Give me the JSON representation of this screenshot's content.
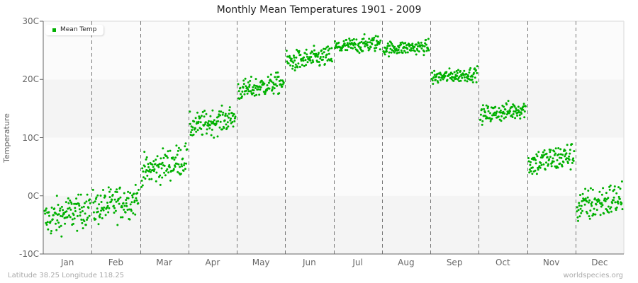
{
  "title": "Monthly Mean Temperatures 1901 - 2009",
  "footer": {
    "location": "Latitude 38.25 Longitude 118.25",
    "source": "worldspecies.org"
  },
  "legend": {
    "label": "Mean Temp",
    "color": "#00b000"
  },
  "colors": {
    "point": "#00b000",
    "band_light": "#fbfbfb",
    "band_dark": "#f4f4f4",
    "divider": "#777777",
    "axis": "#666666",
    "border": "#e4e4e4"
  },
  "chart_data": {
    "type": "scatter",
    "title": "Monthly Mean Temperatures 1901 - 2009",
    "xlabel": "",
    "ylabel": "Temperature",
    "ylim": [
      -10,
      30
    ],
    "yticks": [
      "-10C",
      "0C",
      "10C",
      "20C",
      "30C"
    ],
    "ytick_values": [
      -10,
      0,
      10,
      20,
      30
    ],
    "categories": [
      "Jan",
      "Feb",
      "Mar",
      "Apr",
      "May",
      "Jun",
      "Jul",
      "Aug",
      "Sep",
      "Oct",
      "Nov",
      "Dec"
    ],
    "years": [
      1901,
      2009
    ],
    "grid": "alternating horizontal bands, dashed vertical month dividers",
    "legend_position": "top-left",
    "series": [
      {
        "name": "Mean Temp",
        "per_month": [
          {
            "month": "Jan",
            "start_mean": -4.2,
            "end_mean": -2.0,
            "spread": 1.6,
            "min": -7.0,
            "max": 0.2
          },
          {
            "month": "Feb",
            "start_mean": -2.2,
            "end_mean": -0.5,
            "spread": 1.5,
            "min": -5.3,
            "max": 2.7
          },
          {
            "month": "Mar",
            "start_mean": 4.0,
            "end_mean": 6.5,
            "spread": 1.4,
            "min": 1.5,
            "max": 9.0
          },
          {
            "month": "Apr",
            "start_mean": 11.8,
            "end_mean": 13.5,
            "spread": 1.1,
            "min": 10.0,
            "max": 15.5
          },
          {
            "month": "May",
            "start_mean": 18.0,
            "end_mean": 19.5,
            "spread": 0.9,
            "min": 16.5,
            "max": 21.5
          },
          {
            "month": "Jun",
            "start_mean": 23.0,
            "end_mean": 24.0,
            "spread": 0.9,
            "min": 21.5,
            "max": 25.8
          },
          {
            "month": "Jul",
            "start_mean": 25.5,
            "end_mean": 26.3,
            "spread": 0.7,
            "min": 24.0,
            "max": 28.0
          },
          {
            "month": "Aug",
            "start_mean": 25.3,
            "end_mean": 25.6,
            "spread": 0.6,
            "min": 23.3,
            "max": 27.0
          },
          {
            "month": "Sep",
            "start_mean": 20.3,
            "end_mean": 21.0,
            "spread": 0.6,
            "min": 18.8,
            "max": 22.3
          },
          {
            "month": "Oct",
            "start_mean": 13.8,
            "end_mean": 15.0,
            "spread": 0.8,
            "min": 12.2,
            "max": 17.0
          },
          {
            "month": "Nov",
            "start_mean": 5.5,
            "end_mean": 7.0,
            "spread": 1.2,
            "min": 3.0,
            "max": 9.5
          },
          {
            "month": "Dec",
            "start_mean": -2.0,
            "end_mean": -0.3,
            "spread": 1.5,
            "min": -5.3,
            "max": 3.0
          }
        ]
      }
    ]
  }
}
